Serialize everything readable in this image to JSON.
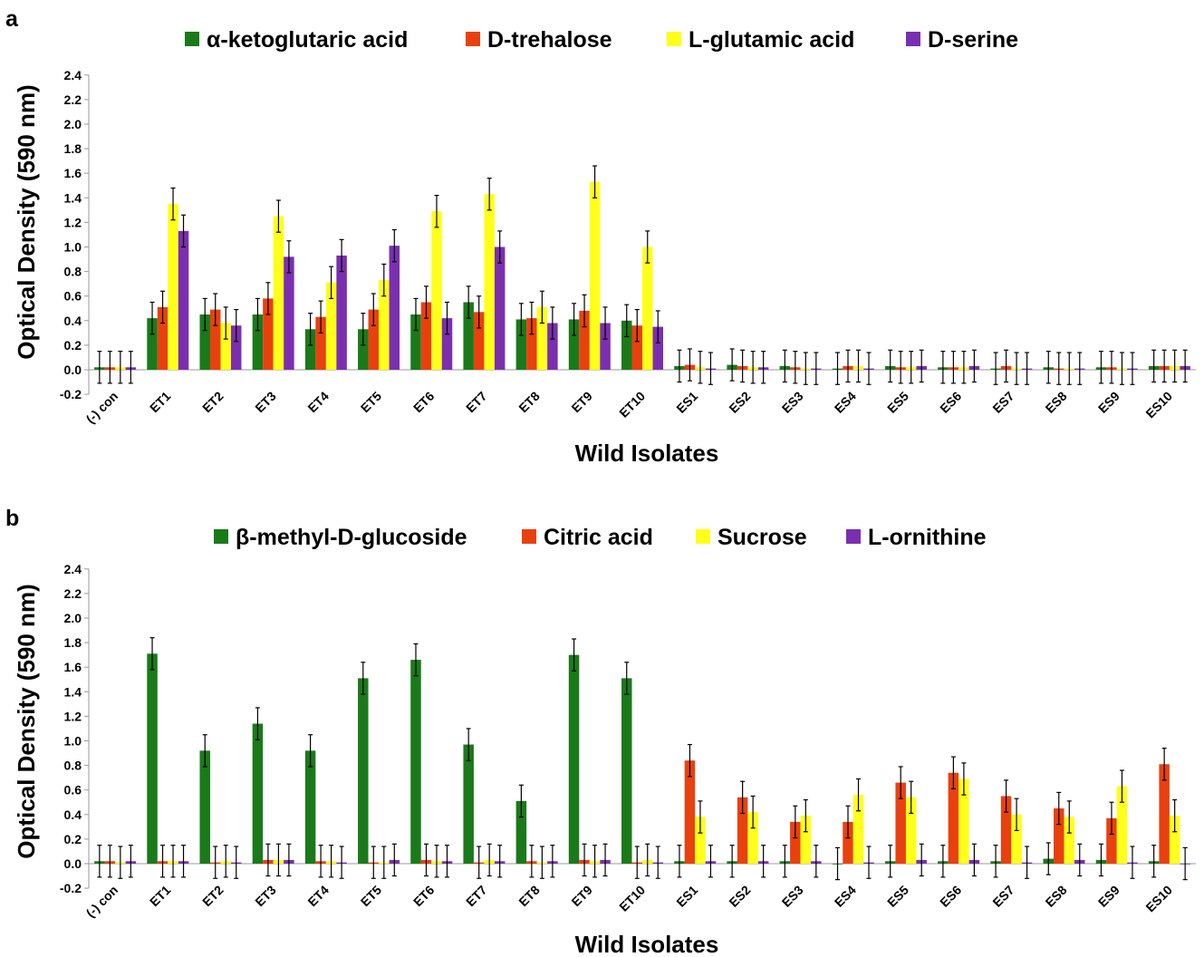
{
  "chart_data": [
    {
      "panel": "a",
      "type": "bar",
      "xlabel": "Wild Isolates",
      "ylabel": "Optical Density (590 nm)",
      "ylim": [
        -0.2,
        2.4
      ],
      "yticks": [
        "-0.2",
        "0.0",
        "0.2",
        "0.4",
        "0.6",
        "0.8",
        "1.0",
        "1.2",
        "1.4",
        "1.6",
        "1.8",
        "2.0",
        "2.2",
        "2.4"
      ],
      "legend_position": "top-center",
      "categories": [
        "(-) con",
        "ET1",
        "ET2",
        "ET3",
        "ET4",
        "ET5",
        "ET6",
        "ET7",
        "ET8",
        "ET9",
        "ET10",
        "ES1",
        "ES2",
        "ES3",
        "ES4",
        "ES5",
        "ES6",
        "ES7",
        "ES8",
        "ES9",
        "ES10"
      ],
      "series": [
        {
          "name": "α-ketoglutaric acid",
          "color": "#1a7a1a",
          "values": [
            0.02,
            0.42,
            0.45,
            0.45,
            0.33,
            0.33,
            0.45,
            0.55,
            0.41,
            0.41,
            0.4,
            0.03,
            0.04,
            0.03,
            0.01,
            0.03,
            0.02,
            0.01,
            0.02,
            0.02,
            0.03
          ],
          "errors": [
            0.13,
            0.13,
            0.13,
            0.13,
            0.13,
            0.13,
            0.13,
            0.13,
            0.13,
            0.13,
            0.13,
            0.13,
            0.13,
            0.13,
            0.13,
            0.13,
            0.13,
            0.13,
            0.13,
            0.13,
            0.13
          ]
        },
        {
          "name": "D-trehalose",
          "color": "#e8410f",
          "values": [
            0.02,
            0.51,
            0.49,
            0.58,
            0.43,
            0.49,
            0.55,
            0.47,
            0.42,
            0.48,
            0.36,
            0.04,
            0.03,
            0.02,
            0.03,
            0.02,
            0.02,
            0.03,
            0.01,
            0.02,
            0.03
          ],
          "errors": [
            0.13,
            0.13,
            0.13,
            0.13,
            0.13,
            0.13,
            0.13,
            0.13,
            0.13,
            0.13,
            0.13,
            0.13,
            0.13,
            0.13,
            0.13,
            0.13,
            0.13,
            0.13,
            0.13,
            0.13,
            0.13
          ]
        },
        {
          "name": "L-glutamic acid",
          "color": "#ffff1a",
          "values": [
            0.02,
            1.35,
            0.38,
            1.25,
            0.71,
            0.73,
            1.29,
            1.43,
            0.51,
            1.53,
            1.0,
            0.02,
            0.02,
            0.01,
            0.03,
            0.02,
            0.02,
            0.01,
            0.01,
            0.01,
            0.03
          ],
          "errors": [
            0.13,
            0.13,
            0.13,
            0.13,
            0.13,
            0.13,
            0.13,
            0.13,
            0.13,
            0.13,
            0.13,
            0.13,
            0.13,
            0.13,
            0.13,
            0.13,
            0.13,
            0.13,
            0.13,
            0.13,
            0.13
          ]
        },
        {
          "name": "D-serine",
          "color": "#7a2fb0",
          "values": [
            0.02,
            1.13,
            0.36,
            0.92,
            0.93,
            1.01,
            0.42,
            1.0,
            0.38,
            0.38,
            0.35,
            0.01,
            0.02,
            0.01,
            0.01,
            0.03,
            0.03,
            0.01,
            0.01,
            0.01,
            0.03
          ],
          "errors": [
            0.13,
            0.13,
            0.13,
            0.13,
            0.13,
            0.13,
            0.13,
            0.13,
            0.13,
            0.13,
            0.13,
            0.13,
            0.13,
            0.13,
            0.13,
            0.13,
            0.13,
            0.13,
            0.13,
            0.13,
            0.13
          ]
        }
      ]
    },
    {
      "panel": "b",
      "type": "bar",
      "xlabel": "Wild Isolates",
      "ylabel": "Optical Density (590 nm)",
      "ylim": [
        -0.2,
        2.4
      ],
      "yticks": [
        "-0.2",
        "0.0",
        "0.2",
        "0.4",
        "0.6",
        "0.8",
        "1.0",
        "1.2",
        "1.4",
        "1.6",
        "1.8",
        "2.0",
        "2.2",
        "2.4"
      ],
      "legend_position": "top-center",
      "categories": [
        "(-) con",
        "ET1",
        "ET2",
        "ET3",
        "ET4",
        "ET5",
        "ET6",
        "ET7",
        "ET8",
        "ET9",
        "ET10",
        "ES1",
        "ES2",
        "ES3",
        "ES4",
        "ES5",
        "ES6",
        "ES7",
        "ES8",
        "ES9",
        "ES10"
      ],
      "series": [
        {
          "name": "β-methyl-D-glucoside",
          "color": "#1a7a1a",
          "values": [
            0.02,
            1.71,
            0.92,
            1.14,
            0.92,
            1.51,
            1.66,
            0.97,
            0.51,
            1.7,
            1.51,
            0.02,
            0.02,
            0.02,
            0.0,
            0.02,
            0.02,
            0.02,
            0.04,
            0.03,
            0.02
          ],
          "errors": [
            0.13,
            0.13,
            0.13,
            0.13,
            0.13,
            0.13,
            0.13,
            0.13,
            0.13,
            0.13,
            0.13,
            0.13,
            0.13,
            0.13,
            0.13,
            0.13,
            0.13,
            0.13,
            0.13,
            0.13,
            0.13
          ]
        },
        {
          "name": "Citric acid",
          "color": "#e8410f",
          "values": [
            0.02,
            0.02,
            0.01,
            0.03,
            0.02,
            0.01,
            0.03,
            0.01,
            0.02,
            0.03,
            0.01,
            0.84,
            0.54,
            0.34,
            0.34,
            0.66,
            0.74,
            0.55,
            0.45,
            0.37,
            0.81
          ],
          "errors": [
            0.13,
            0.13,
            0.13,
            0.13,
            0.13,
            0.13,
            0.13,
            0.13,
            0.13,
            0.13,
            0.13,
            0.13,
            0.13,
            0.13,
            0.13,
            0.13,
            0.13,
            0.13,
            0.13,
            0.13,
            0.13
          ]
        },
        {
          "name": "Sucrose",
          "color": "#ffff1a",
          "values": [
            0.01,
            0.02,
            0.02,
            0.03,
            0.02,
            0.01,
            0.02,
            0.03,
            0.01,
            0.02,
            0.03,
            0.38,
            0.42,
            0.39,
            0.56,
            0.54,
            0.69,
            0.4,
            0.38,
            0.63,
            0.39
          ],
          "errors": [
            0.13,
            0.13,
            0.13,
            0.13,
            0.13,
            0.13,
            0.13,
            0.13,
            0.13,
            0.13,
            0.13,
            0.13,
            0.13,
            0.13,
            0.13,
            0.13,
            0.13,
            0.13,
            0.13,
            0.13,
            0.13
          ]
        },
        {
          "name": "L-ornithine",
          "color": "#7a2fb0",
          "values": [
            0.02,
            0.02,
            0.01,
            0.03,
            0.01,
            0.03,
            0.02,
            0.02,
            0.02,
            0.03,
            0.01,
            0.02,
            0.02,
            0.02,
            0.01,
            0.03,
            0.03,
            0.01,
            0.03,
            0.01,
            0.0
          ],
          "errors": [
            0.13,
            0.13,
            0.13,
            0.13,
            0.13,
            0.13,
            0.13,
            0.13,
            0.13,
            0.13,
            0.13,
            0.13,
            0.13,
            0.13,
            0.13,
            0.13,
            0.13,
            0.13,
            0.13,
            0.13,
            0.13
          ]
        }
      ]
    }
  ]
}
